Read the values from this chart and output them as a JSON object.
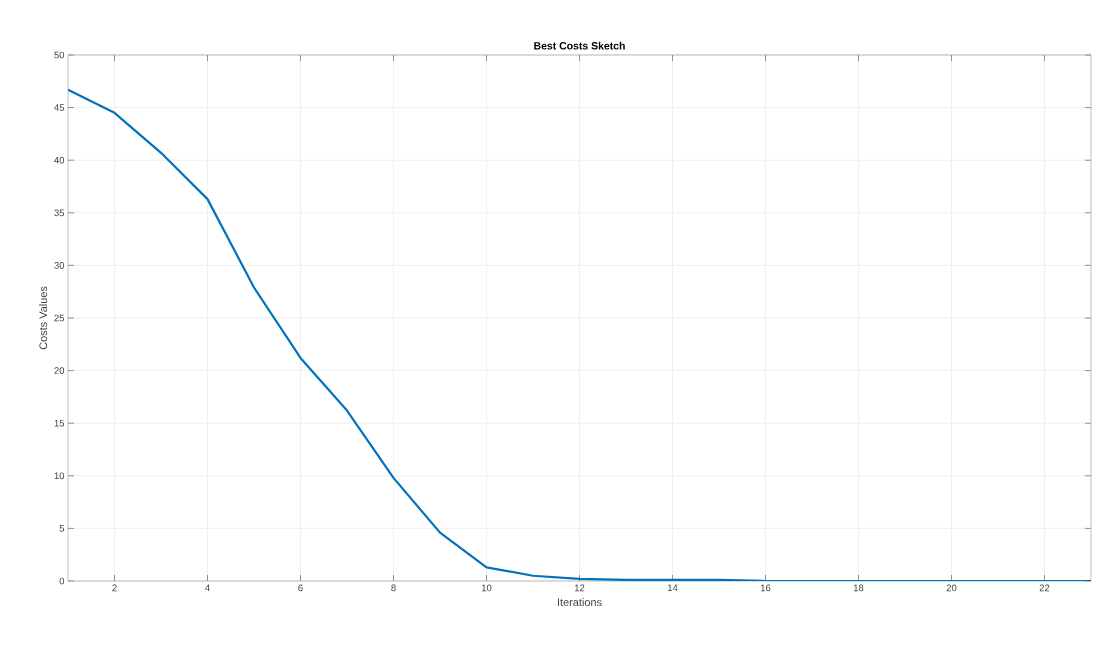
{
  "chart_data": {
    "type": "line",
    "title": "Best Costs Sketch",
    "xlabel": "Iterations",
    "ylabel": "Costs Values",
    "x": [
      1,
      2,
      3,
      4,
      5,
      6,
      7,
      8,
      9,
      10,
      11,
      12,
      13,
      14,
      15,
      16,
      17,
      18,
      19,
      20,
      21,
      22,
      23
    ],
    "series": [
      {
        "color": "#0072bd",
        "values": [
          46.7,
          44.5,
          40.7,
          36.3,
          27.9,
          21.2,
          16.2,
          9.8,
          4.6,
          1.3,
          0.5,
          0.2,
          0.1,
          0.1,
          0.1,
          0,
          0,
          0,
          0,
          0,
          0,
          0,
          0
        ]
      }
    ],
    "xlim": [
      1,
      23
    ],
    "ylim": [
      0,
      50
    ],
    "xticks": [
      2,
      4,
      6,
      8,
      10,
      12,
      14,
      16,
      18,
      20,
      22
    ],
    "yticks": [
      0,
      5,
      10,
      15,
      20,
      25,
      30,
      35,
      40,
      45,
      50
    ],
    "grid": true,
    "marker": "none",
    "line_style": "solid"
  }
}
